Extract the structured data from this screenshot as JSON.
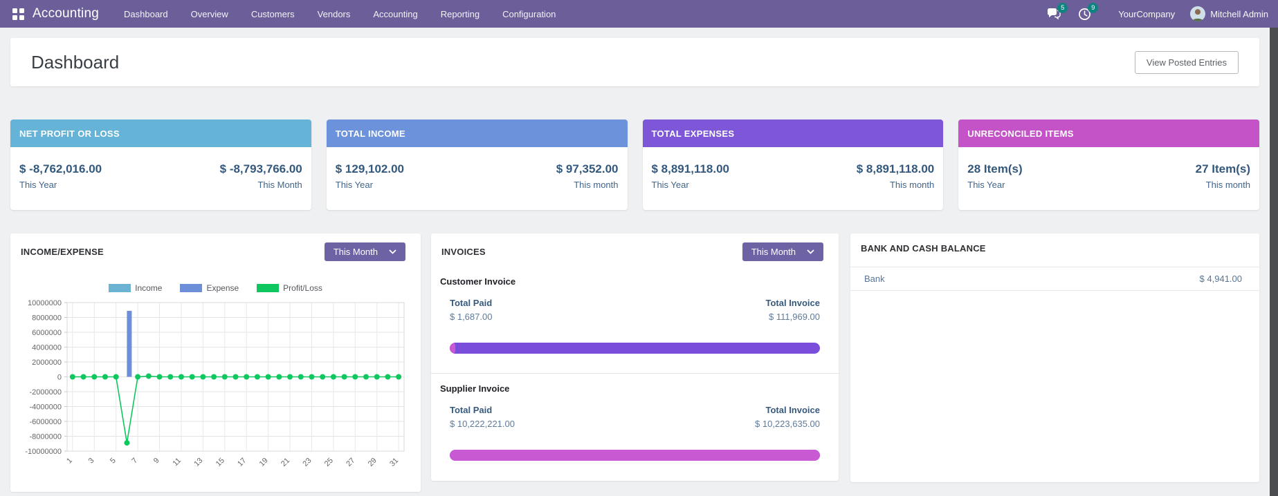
{
  "colors": {
    "nav": "#6c5e99",
    "badge": "#0e837f",
    "progress_paid": "#c959d2",
    "progress_total": "#7a4edb"
  },
  "nav": {
    "brand": "Accounting",
    "items": [
      "Dashboard",
      "Overview",
      "Customers",
      "Vendors",
      "Accounting",
      "Reporting",
      "Configuration"
    ],
    "messages_badge": "5",
    "activities_badge": "9",
    "company": "YourCompany",
    "user": "Mitchell Admin"
  },
  "header": {
    "title": "Dashboard",
    "button_label": "View Posted Entries"
  },
  "kpis": [
    {
      "title": "NET PROFIT OR LOSS",
      "color": "#66b3d8",
      "left_value": "$ -8,762,016.00",
      "left_label": "This Year",
      "right_value": "$ -8,793,766.00",
      "right_label": "This Month"
    },
    {
      "title": "TOTAL INCOME",
      "color": "#6c92dc",
      "left_value": "$ 129,102.00",
      "left_label": "This Year",
      "right_value": "$ 97,352.00",
      "right_label": "This month"
    },
    {
      "title": "TOTAL EXPENSES",
      "color": "#7d57d8",
      "left_value": "$ 8,891,118.00",
      "left_label": "This Year",
      "right_value": "$ 8,891,118.00",
      "right_label": "This month"
    },
    {
      "title": "UNRECONCILED ITEMS",
      "color": "#c353c6",
      "left_value": "28 Item(s)",
      "left_label": "This Year",
      "right_value": "27 Item(s)",
      "right_label": "This month"
    }
  ],
  "income_expense": {
    "title": "INCOME/EXPENSE",
    "filter": "This Month"
  },
  "chart_data": {
    "type": "bar",
    "title": "INCOME/EXPENSE",
    "x": [
      1,
      2,
      3,
      4,
      5,
      6,
      7,
      8,
      9,
      10,
      11,
      12,
      13,
      14,
      15,
      16,
      17,
      18,
      19,
      20,
      21,
      22,
      23,
      24,
      25,
      26,
      27,
      28,
      29,
      30,
      31
    ],
    "xtick_step": 2,
    "ylim": [
      -10000000,
      10000000
    ],
    "ytick_step": 2000000,
    "grid": true,
    "legend_position": "top",
    "series": [
      {
        "name": "Income",
        "type": "bar",
        "color": "#6cb2d3",
        "values": [
          0,
          0,
          0,
          0,
          0,
          0,
          0,
          97352,
          0,
          0,
          0,
          0,
          0,
          0,
          0,
          0,
          0,
          0,
          0,
          0,
          0,
          0,
          0,
          0,
          0,
          0,
          0,
          0,
          0,
          0,
          0
        ]
      },
      {
        "name": "Expense",
        "type": "bar",
        "color": "#6d8ed8",
        "values": [
          0,
          0,
          0,
          0,
          0,
          8891118,
          0,
          0,
          0,
          0,
          0,
          0,
          0,
          0,
          0,
          0,
          0,
          0,
          0,
          0,
          0,
          0,
          0,
          0,
          0,
          0,
          0,
          0,
          0,
          0,
          0
        ]
      },
      {
        "name": "Profit/Loss",
        "type": "line",
        "color": "#0ec75f",
        "values": [
          0,
          0,
          0,
          0,
          0,
          -8891118,
          0,
          97352,
          0,
          0,
          0,
          0,
          0,
          0,
          0,
          0,
          0,
          0,
          0,
          0,
          0,
          0,
          0,
          0,
          0,
          0,
          0,
          0,
          0,
          0,
          0
        ]
      }
    ]
  },
  "invoices": {
    "title": "INVOICES",
    "filter": "This Month",
    "customer": {
      "heading": "Customer Invoice",
      "paid_label": "Total Paid",
      "paid_value": "$ 1,687.00",
      "invoice_label": "Total Invoice",
      "invoice_value": "$ 111,969.00",
      "paid_pct": 1.5
    },
    "supplier": {
      "heading": "Supplier Invoice",
      "paid_label": "Total Paid",
      "paid_value": "$ 10,222,221.00",
      "invoice_label": "Total Invoice",
      "invoice_value": "$ 10,223,635.00",
      "paid_pct": 100
    }
  },
  "bank": {
    "title": "BANK AND CASH BALANCE",
    "rows": [
      {
        "name": "Bank",
        "value": "$ 4,941.00"
      }
    ]
  }
}
